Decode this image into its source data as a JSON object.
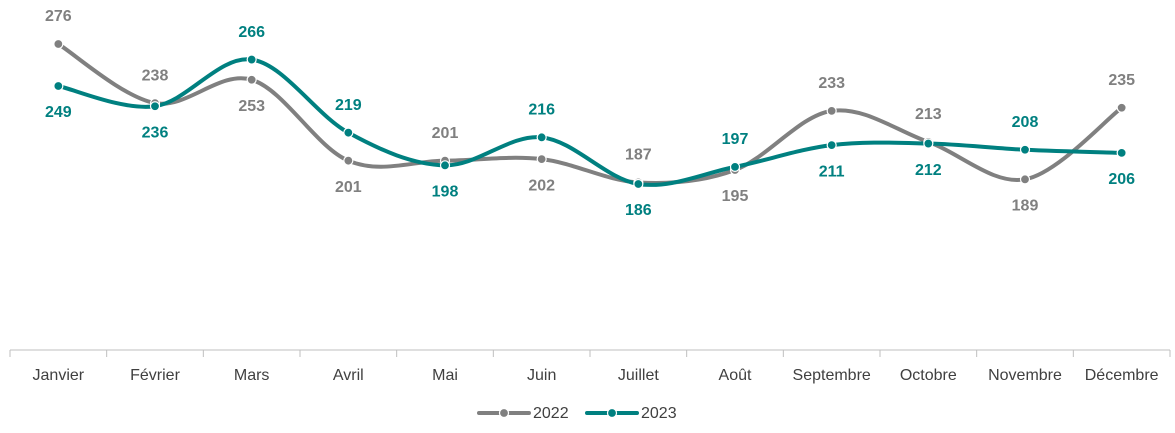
{
  "chart_data": {
    "type": "line",
    "categories": [
      "Janvier",
      "Février",
      "Mars",
      "Avril",
      "Mai",
      "Juin",
      "Juillet",
      "Août",
      "Septembre",
      "Octobre",
      "Novembre",
      "Décembre"
    ],
    "series": [
      {
        "name": "2022",
        "color": "#808080",
        "values": [
          276,
          238,
          253,
          201,
          201,
          202,
          187,
          195,
          233,
          213,
          189,
          235
        ]
      },
      {
        "name": "2023",
        "color": "#008080",
        "values": [
          249,
          236,
          266,
          219,
          198,
          216,
          186,
          197,
          211,
          212,
          208,
          206
        ]
      }
    ],
    "smooth": true,
    "legend": "bottom"
  }
}
